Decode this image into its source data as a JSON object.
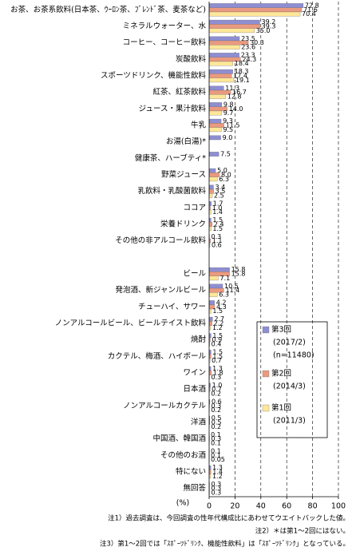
{
  "chart_data": {
    "type": "bar",
    "orientation": "horizontal",
    "categories": [
      "お茶、お茶系飲料(日本茶、ｳｰﾛﾝ茶、ﾌﾞﾚﾝﾄﾞ茶、麦茶など)",
      "ミネラルウォーター、水",
      "コーヒー、コーヒー飲料",
      "炭酸飲料",
      "スポーツドリンク、機能性飲料",
      "紅茶、紅茶飲料",
      "ジュース・果汁飲料",
      "牛乳",
      "お湯(白湯)*",
      "健康茶、ハーブティ*",
      "野菜ジュース",
      "乳飲料・乳酸菌飲料",
      "ココア",
      "栄養ドリンク",
      "その他の非アルコール飲料",
      null,
      "ビール",
      "発泡酒、新ジャンルビール",
      "チューハイ、サワー",
      "ノンアルコールビール、ビールテイスト飲料",
      "焼酎",
      "カクテル、梅酒、ハイボール",
      "ワイン",
      "日本酒",
      "ノンアルコールカクテル",
      "洋酒",
      "中国酒、韓国酒",
      "その他のお酒",
      "特にない",
      "無回答"
    ],
    "series": [
      {
        "name": "第3回",
        "period": "(2017/2)",
        "sample": "(n=11480)",
        "color": "#8e8ed2",
        "values": [
          72.8,
          39.2,
          23.5,
          23.3,
          18.3,
          11.3,
          9.8,
          9.3,
          9.0,
          7.5,
          5.0,
          3.4,
          1.7,
          1.5,
          0.3,
          null,
          15.8,
          10.5,
          4.2,
          2.7,
          1.5,
          1.5,
          1.3,
          1.0,
          0.6,
          0.5,
          0.1,
          0.1,
          1.3,
          0.3
        ],
        "value_labels": [
          "72.8",
          "39.2",
          "23.5",
          "23.3",
          "18.3",
          "11.3",
          "9.8",
          "9.3",
          "9.0",
          "7.5",
          "5.0",
          "3.4",
          "1.7",
          "1.5",
          "0.3",
          null,
          "15.8",
          "10.5",
          "4.2",
          "2.7",
          "1.5",
          "1.5",
          "1.3",
          "1.0",
          "0.6",
          "0.5",
          "0.1",
          "0.1",
          "1.3",
          "0.3"
        ]
      },
      {
        "name": "第2回",
        "period": "(2014/3)",
        "color": "#ea9a80",
        "values": [
          71.6,
          39.3,
          30.3,
          24.3,
          17.4,
          16.7,
          14.0,
          11.5,
          null,
          null,
          8.0,
          3.5,
          1.0,
          2.4,
          1.1,
          null,
          15.8,
          11.4,
          4.3,
          2.2,
          0.9,
          1.5,
          1.8,
          0.7,
          0.3,
          0.5,
          0.3,
          0.1,
          1.4,
          0.3
        ],
        "value_labels": [
          "71.6",
          "39.3",
          "30.3",
          "24.3",
          "17.4",
          "16.7",
          "14.0",
          "11.5",
          null,
          null,
          "8.0",
          "3.5",
          "1.0",
          "2.4",
          "1.1",
          null,
          "15.8",
          "11.4",
          "4.3",
          "2.2",
          "0.9",
          "1.5",
          "1.8",
          "0.7",
          "0.3",
          "0.5",
          "0.3",
          "0.1",
          "1.4",
          "0.3"
        ]
      },
      {
        "name": "第1回",
        "period": "(2011/3)",
        "color": "#ffe79a",
        "values": [
          70.4,
          35.0,
          23.6,
          18.4,
          19.1,
          12.8,
          9.7,
          9.5,
          null,
          null,
          6.3,
          2.5,
          1.4,
          1.5,
          0.6,
          null,
          7.1,
          6.3,
          1.5,
          1.2,
          0.4,
          0.7,
          0.3,
          0.2,
          0.2,
          0.2,
          0.1,
          0.05,
          1.2,
          0.3
        ],
        "value_labels": [
          "70.4",
          "35.0",
          "23.6",
          "18.4",
          "19.1",
          "12.8",
          "9.7",
          "9.5",
          null,
          null,
          "6.3",
          "2.5",
          "1.4",
          "1.5",
          "0.6",
          null,
          "7.1",
          "6.3",
          "1.5",
          "1.2",
          "0.4",
          "0.7",
          "0.3",
          "0.2",
          "0.2",
          "0.2",
          "0.1",
          "0.05",
          "1.2",
          "0.3"
        ]
      }
    ],
    "xlim": [
      0,
      100
    ],
    "xticks": [
      0,
      20,
      40,
      60,
      80,
      100
    ],
    "grid": true,
    "x_label": "(%)",
    "notes": [
      "注1）過去調査は、今回調査の性年代構成比にあわせてウエイトバックした値。",
      "注2）＊は第1～2回にはない。",
      "注3）第1～2回では「ｽﾎﾟｰﾂﾄﾞﾘﾝｸ、機能性飲料」は「ｽﾎﾟｰﾂﾄﾞﾘﾝｸ」となっている。"
    ]
  }
}
